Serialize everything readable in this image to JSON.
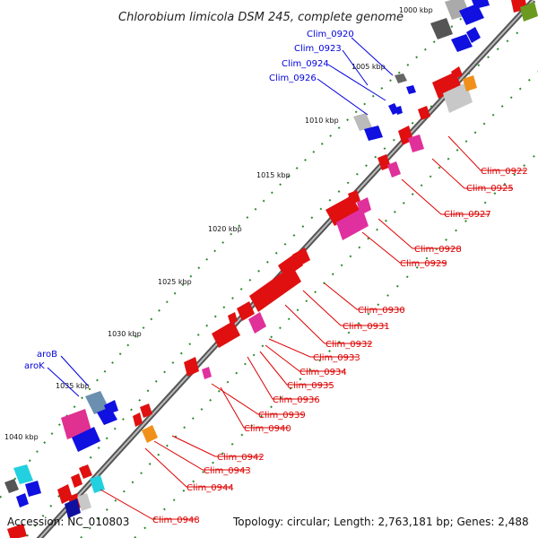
{
  "title": "Chlorobium limicola DSM 245, complete genome",
  "accession": "Accession: NC_010803",
  "topology": "Topology: circular; Length: 2,763,181 bp; Genes: 2,488",
  "colors": {
    "forward_label": "#0000dd",
    "reverse_label": "#dd0000",
    "backbone": "#7a7a7a",
    "tick_marks": "#2e8b2e"
  },
  "ticks": [
    "1000 kbp",
    "1005 kbp",
    "1010 kbp",
    "1015 kbp",
    "1020 kbp",
    "1025 kbp",
    "1030 kbp",
    "1035 kbp",
    "1040 kbp"
  ],
  "forward_labels": [
    "Clim_0920",
    "Clim_0923",
    "Clim_0924",
    "Clim_0926",
    "aroB",
    "aroK"
  ],
  "reverse_labels": [
    "Clim_0922",
    "Clim_0925",
    "Clim_0927",
    "Clim_0928",
    "Clim_0929",
    "Clim_0930",
    "Clim_0931",
    "Clim_0932",
    "Clim_0933",
    "Clim_0934",
    "Clim_0935",
    "Clim_0936",
    "Clim_0939",
    "Clim_0940",
    "Clim_0942",
    "Clim_0943",
    "Clim_0944",
    "Clim_0948"
  ]
}
